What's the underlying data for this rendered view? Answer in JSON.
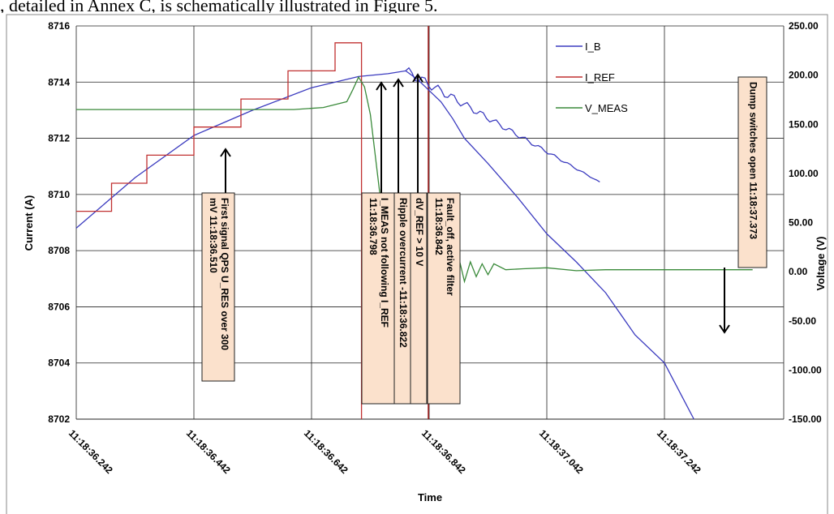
{
  "caption": ", detailed in Annex C, is schematically illustrated in Figure 5.",
  "chart_data": {
    "type": "line",
    "xlabel": "Time",
    "ylabel_left": "Current (A)",
    "ylabel_right": "Voltage (V)",
    "x_ticks": [
      "11:18:36.242",
      "11:18:36.442",
      "11:18:36.642",
      "11:18:36.842",
      "11:18:37.042",
      "11:18:37.242"
    ],
    "x_range": [
      11.1836242,
      11.1837422
    ],
    "y_left_ticks": [
      "8702",
      "8704",
      "8706",
      "8708",
      "8710",
      "8712",
      "8714",
      "8716"
    ],
    "ylim_left": [
      8702,
      8716
    ],
    "y_right_ticks": [
      "-150.00",
      "-100.00",
      "-50.00",
      "0.00",
      "50.00",
      "100.00",
      "150.00",
      "200.00",
      "250.00"
    ],
    "ylim_right": [
      -150,
      250
    ],
    "grid": true,
    "legend_position": "top-right",
    "series": [
      {
        "name": "I_B",
        "axis": "left",
        "color": "#3b3bbf",
        "points": [
          [
            0.0,
            8708.8
          ],
          [
            0.1,
            8710.6
          ],
          [
            0.2,
            8712.1
          ],
          [
            0.3,
            8713.0
          ],
          [
            0.4,
            8713.8
          ],
          [
            0.48,
            8714.2
          ],
          [
            0.53,
            8714.3
          ],
          [
            0.56,
            8714.4
          ],
          [
            0.58,
            8714.1
          ],
          [
            0.6,
            8713.7
          ],
          [
            0.62,
            8713.3
          ],
          [
            0.64,
            8712.7
          ],
          [
            0.66,
            8712.0
          ],
          [
            0.7,
            8711.1
          ],
          [
            0.75,
            8709.9
          ],
          [
            0.8,
            8708.6
          ],
          [
            0.85,
            8707.6
          ],
          [
            0.9,
            8706.5
          ],
          [
            0.95,
            8705.0
          ],
          [
            1.0,
            8704.0
          ],
          [
            1.05,
            8702.0
          ]
        ]
      },
      {
        "name": "I_REF",
        "axis": "left",
        "color": "#c03030",
        "points": [
          [
            0.0,
            8709.4
          ],
          [
            0.06,
            8709.4
          ],
          [
            0.06,
            8710.4
          ],
          [
            0.12,
            8710.4
          ],
          [
            0.12,
            8711.4
          ],
          [
            0.2,
            8711.4
          ],
          [
            0.2,
            8712.4
          ],
          [
            0.28,
            8712.4
          ],
          [
            0.28,
            8713.4
          ],
          [
            0.36,
            8713.4
          ],
          [
            0.36,
            8714.4
          ],
          [
            0.44,
            8714.4
          ],
          [
            0.44,
            8715.4
          ],
          [
            0.485,
            8715.4
          ],
          [
            0.485,
            8702.0
          ]
        ]
      },
      {
        "name": "V_MEAS",
        "axis": "right",
        "color": "#3a8a3a",
        "points": [
          [
            0.0,
            165
          ],
          [
            0.37,
            165
          ],
          [
            0.42,
            167
          ],
          [
            0.46,
            173
          ],
          [
            0.47,
            185
          ],
          [
            0.48,
            198
          ],
          [
            0.49,
            188
          ],
          [
            0.5,
            160
          ],
          [
            0.52,
            60
          ],
          [
            0.53,
            -50
          ],
          [
            0.545,
            -70
          ],
          [
            0.56,
            5
          ],
          [
            0.57,
            80
          ],
          [
            0.58,
            -20
          ],
          [
            0.59,
            -60
          ],
          [
            0.6,
            30
          ],
          [
            0.61,
            -25
          ],
          [
            0.62,
            30
          ],
          [
            0.63,
            20
          ],
          [
            0.64,
            -25
          ],
          [
            0.65,
            15
          ],
          [
            0.66,
            -10
          ],
          [
            0.67,
            10
          ],
          [
            0.68,
            -5
          ],
          [
            0.69,
            8
          ],
          [
            0.7,
            -3
          ],
          [
            0.71,
            8
          ],
          [
            0.73,
            2
          ],
          [
            0.76,
            3
          ],
          [
            0.8,
            4
          ],
          [
            0.85,
            1
          ],
          [
            0.9,
            2
          ],
          [
            1.0,
            2
          ],
          [
            1.15,
            2
          ]
        ]
      }
    ],
    "annotations": [
      {
        "text": "First signal QPS U_RES over 300 mV 11:18:36.510"
      },
      {
        "text": "I_MEAS not following I_REF 11:18:36.798"
      },
      {
        "text": "Ripple overcurrent -11:18:36.822"
      },
      {
        "text": "dV_REF > 10 V"
      },
      {
        "text": "Fault_off, active filter 11:18:36.842"
      },
      {
        "text": "Dump switches open 11:18:37.373"
      }
    ]
  },
  "colors": {
    "i_b": "#3b3bbf",
    "i_ref": "#c03030",
    "v_meas": "#3a8a3a",
    "annotation_fill": "#fbe1cc",
    "annotation_border": "#222222",
    "fault_marker": "#a02020"
  }
}
